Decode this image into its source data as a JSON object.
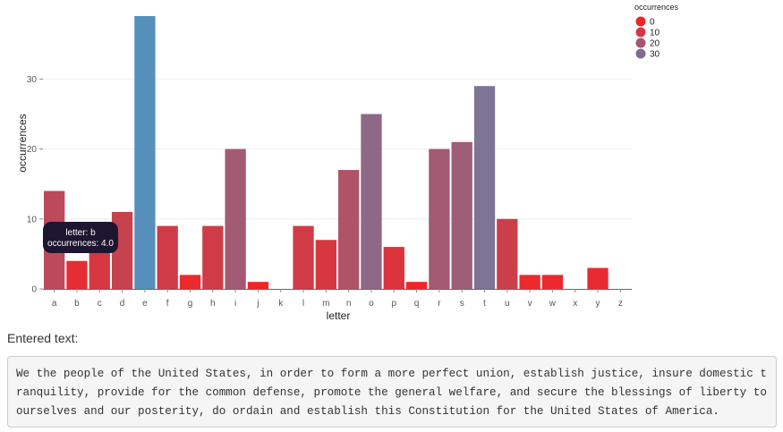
{
  "chart_data": {
    "type": "bar",
    "xlabel": "letter",
    "ylabel": "occurrences",
    "categories": [
      "a",
      "b",
      "c",
      "d",
      "e",
      "f",
      "g",
      "h",
      "i",
      "j",
      "k",
      "l",
      "m",
      "n",
      "o",
      "p",
      "q",
      "r",
      "s",
      "t",
      "u",
      "v",
      "w",
      "x",
      "y",
      "z"
    ],
    "values": [
      14,
      4,
      7,
      11,
      39,
      9,
      2,
      9,
      20,
      1,
      0,
      9,
      7,
      17,
      25,
      6,
      1,
      20,
      21,
      29,
      10,
      2,
      2,
      0,
      3,
      0
    ],
    "ylim": [
      0,
      39
    ],
    "yticks": [
      0,
      10,
      20,
      30
    ],
    "grid": true,
    "legend": {
      "title": "occurrences",
      "position": "top-right",
      "entries": [
        {
          "label": "0",
          "color": "#f0252b"
        },
        {
          "label": "10",
          "color": "#d23a48"
        },
        {
          "label": "20",
          "color": "#a85470"
        },
        {
          "label": "30",
          "color": "#806b91"
        }
      ]
    },
    "color_scale": {
      "low": "#f42324",
      "high": "#5590bd",
      "domain": [
        0,
        39
      ]
    },
    "tooltip": {
      "line1": "letter: b",
      "line2": "occurrences: 4.0"
    }
  },
  "entered": {
    "label": "Entered text:",
    "text": "We the people of the United States, in order to form a more perfect union, establish justice, insure domestic tranquility, provide for the common defense, promote the general welfare, and secure the blessings of liberty to ourselves and our posterity, do ordain and establish this Constitution for the United States of America."
  }
}
